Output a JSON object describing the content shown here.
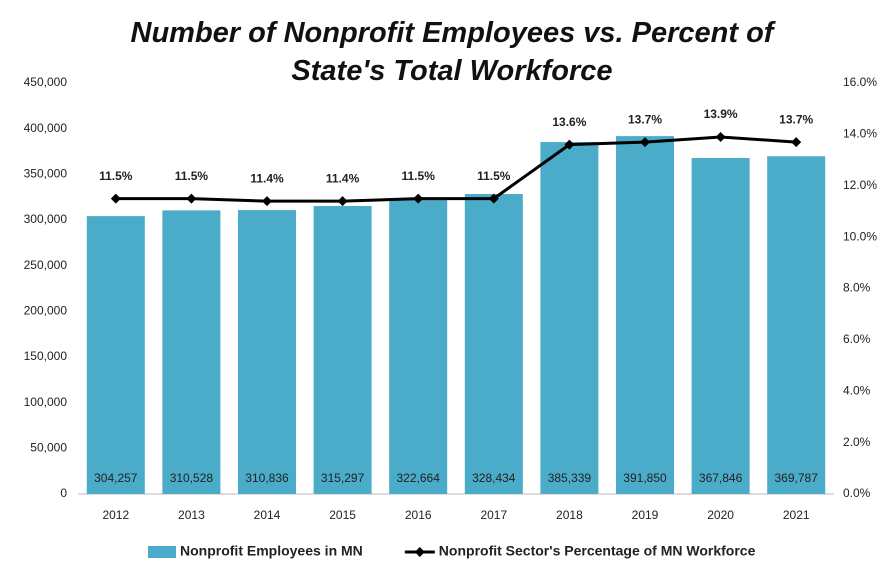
{
  "chart_data": {
    "type": "bar",
    "title": "Number of Nonprofit Employees vs. Percent of State's Total Workforce",
    "categories": [
      "2012",
      "2013",
      "2014",
      "2015",
      "2016",
      "2017",
      "2018",
      "2019",
      "2020",
      "2021"
    ],
    "series": [
      {
        "name": "Nonprofit Employees in MN",
        "color": "#4aacc8",
        "values": [
          304257,
          310528,
          310836,
          315297,
          322664,
          328434,
          385339,
          391850,
          367846,
          369787
        ],
        "value_labels": [
          "304,257",
          "310,528",
          "310,836",
          "315,297",
          "322,664",
          "328,434",
          "385,339",
          "391,850",
          "367,846",
          "369,787"
        ]
      },
      {
        "name": "Nonprofit Sector's Percentage of MN Workforce",
        "color": "#000000",
        "type": "line",
        "axis": "y2",
        "values": [
          11.5,
          11.5,
          11.4,
          11.4,
          11.5,
          11.5,
          13.6,
          13.7,
          13.9,
          13.7
        ],
        "value_labels": [
          "11.5%",
          "11.5%",
          "11.4%",
          "11.4%",
          "11.5%",
          "11.5%",
          "13.6%",
          "13.7%",
          "13.9%",
          "13.7%"
        ]
      }
    ],
    "ylim": [
      0,
      450000
    ],
    "yticks": [
      0,
      {
        "value": 50000,
        "label": "50,000"
      },
      {
        "value": 100000,
        "label": "100,000"
      },
      {
        "value": 150000,
        "label": "150,000"
      },
      {
        "value": 200000,
        "label": "200,000"
      },
      {
        "value": 250000,
        "label": "250,000"
      },
      {
        "value": 300000,
        "label": "300,000"
      },
      {
        "value": 350000,
        "label": "350,000"
      },
      {
        "value": 400000,
        "label": "400,000"
      },
      {
        "value": 450000,
        "label": "450,000"
      }
    ],
    "y2lim": [
      0,
      16
    ],
    "y2ticks": [
      {
        "value": 0,
        "label": "0.0%"
      },
      {
        "value": 2,
        "label": "2.0%"
      },
      {
        "value": 4,
        "label": "4.0%"
      },
      {
        "value": 6,
        "label": "6.0%"
      },
      {
        "value": 8,
        "label": "8.0%"
      },
      {
        "value": 10,
        "label": "10.0%"
      },
      {
        "value": 12,
        "label": "12.0%"
      },
      {
        "value": 14,
        "label": "14.0%"
      },
      {
        "value": 16,
        "label": "16.0%"
      }
    ],
    "grid": false,
    "legend": "bottom"
  }
}
